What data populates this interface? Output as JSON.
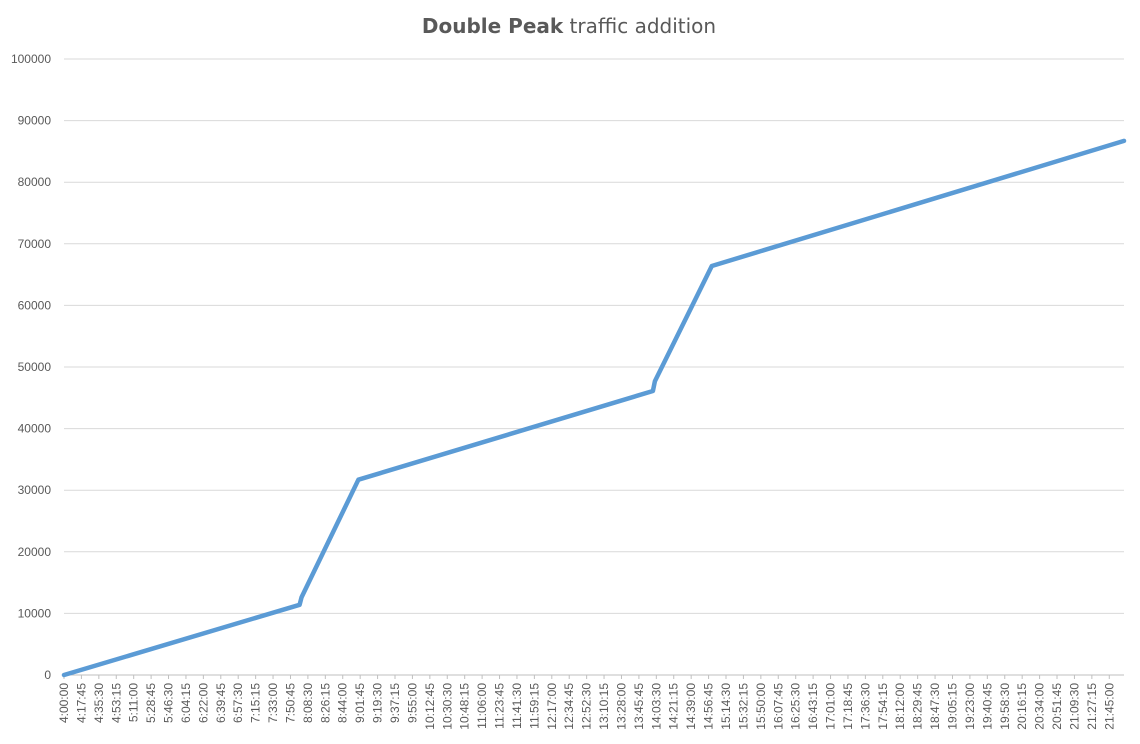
{
  "chart_data": {
    "type": "line",
    "title_bold": "Double Peak",
    "title_rest": " traffic addition",
    "xlabel": "",
    "ylabel": "",
    "ylim": [
      0,
      100000
    ],
    "yticks": [
      "0",
      "10000",
      "20000",
      "30000",
      "40000",
      "50000",
      "60000",
      "70000",
      "80000",
      "90000",
      "100000"
    ],
    "x_start": "4:00:00",
    "x_end": "22:00:00",
    "x_tick_labels": [
      "4:00:00",
      "4:17:45",
      "4:35:30",
      "4:53:15",
      "5:11:00",
      "5:28:45",
      "5:46:30",
      "6:04:15",
      "6:22:00",
      "6:39:45",
      "6:57:30",
      "7:15:15",
      "7:33:00",
      "7:50:45",
      "8:08:30",
      "8:26:15",
      "8:44:00",
      "9:01:45",
      "9:19:30",
      "9:37:15",
      "9:55:00",
      "10:12:45",
      "10:30:30",
      "10:48:15",
      "11:06:00",
      "11:23:45",
      "11:41:30",
      "11:59:15",
      "12:17:00",
      "12:34:45",
      "12:52:30",
      "13:10:15",
      "13:28:00",
      "13:45:45",
      "14:03:30",
      "14:21:15",
      "14:39:00",
      "14:56:45",
      "15:14:30",
      "15:32:15",
      "15:50:00",
      "16:07:45",
      "16:25:30",
      "16:43:15",
      "17:01:00",
      "17:18:45",
      "17:36:30",
      "17:54:15",
      "18:12:00",
      "18:29:45",
      "18:47:30",
      "19:05:15",
      "19:23:00",
      "19:40:45",
      "19:58:30",
      "20:16:15",
      "20:34:00",
      "20:51:45",
      "21:09:30",
      "21:27:15",
      "21:45:00"
    ],
    "grid": true,
    "legend": "none",
    "series": [
      {
        "color": "#5b9bd5",
        "points": [
          {
            "x": "4:00:00",
            "y": 0
          },
          {
            "x": "8:00:00",
            "y": 11400
          },
          {
            "x": "8:02:00",
            "y": 12600
          },
          {
            "x": "9:00:00",
            "y": 31700
          },
          {
            "x": "14:00:00",
            "y": 46100
          },
          {
            "x": "14:02:00",
            "y": 47700
          },
          {
            "x": "15:00:00",
            "y": 66400
          },
          {
            "x": "22:00:00",
            "y": 86700
          }
        ]
      }
    ]
  }
}
